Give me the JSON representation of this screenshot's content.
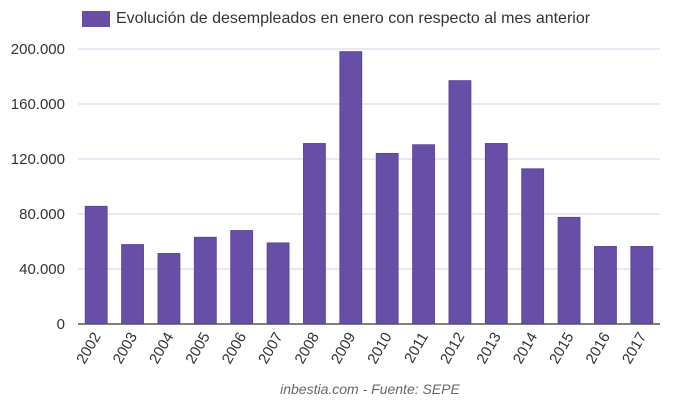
{
  "chart_data": {
    "type": "bar",
    "categories": [
      "2002",
      "2003",
      "2004",
      "2005",
      "2006",
      "2007",
      "2008",
      "2009",
      "2010",
      "2011",
      "2012",
      "2013",
      "2014",
      "2015",
      "2016",
      "2017"
    ],
    "series": [
      {
        "name": "Evolución de desempleados en enero con respecto al mes anterior",
        "values": [
          85600,
          57800,
          51300,
          63100,
          68000,
          59000,
          131300,
          198100,
          124100,
          130400,
          177000,
          131300,
          112900,
          77600,
          56400,
          56400
        ]
      }
    ],
    "ylim": [
      0,
      200000
    ],
    "yticks": [
      "0",
      "40.000",
      "80.000",
      "120.000",
      "160.000",
      "200.000"
    ],
    "grid": true,
    "legend": "top-left",
    "color": "#674ea7",
    "source": "inbestia.com - Fuente: SEPE"
  }
}
